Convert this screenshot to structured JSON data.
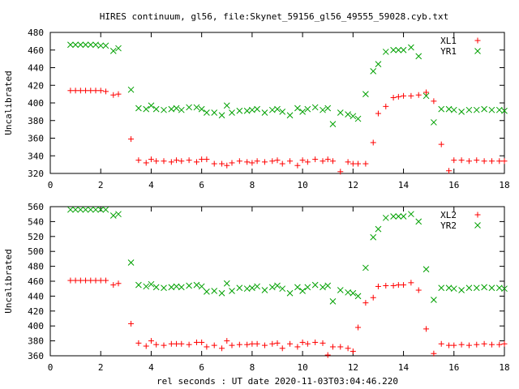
{
  "title": "HIRES continuum, gl56, file:Skynet_59156_gl56_49555_59028.cyb.txt",
  "chart_data": [
    {
      "type": "scatter",
      "xlabel": "",
      "ylabel": "Uncalibrated",
      "xlim": [
        0,
        18
      ],
      "ylim": [
        320,
        480
      ],
      "x_ticks": [
        0,
        2,
        4,
        6,
        8,
        10,
        12,
        14,
        16,
        18
      ],
      "y_ticks": [
        320,
        340,
        360,
        380,
        400,
        420,
        440,
        460,
        480
      ],
      "grid": false,
      "legend_position": "top-right",
      "x": [
        0.8,
        1.0,
        1.2,
        1.4,
        1.6,
        1.8,
        2.0,
        2.2,
        2.5,
        2.7,
        3.2,
        3.5,
        3.8,
        4.0,
        4.2,
        4.5,
        4.8,
        5.0,
        5.2,
        5.5,
        5.8,
        6.0,
        6.2,
        6.5,
        6.8,
        7.0,
        7.2,
        7.5,
        7.8,
        8.0,
        8.2,
        8.5,
        8.8,
        9.0,
        9.2,
        9.5,
        9.8,
        10.0,
        10.2,
        10.5,
        10.8,
        11.0,
        11.2,
        11.5,
        11.8,
        12.0,
        12.2,
        12.5,
        12.8,
        13.0,
        13.3,
        13.6,
        13.8,
        14.0,
        14.3,
        14.6,
        14.9,
        15.2,
        15.5,
        15.8,
        16.0,
        16.3,
        16.6,
        16.9,
        17.2,
        17.5,
        17.8,
        18.0
      ],
      "series": [
        {
          "name": "XL1",
          "color": "#ff0000",
          "marker": "plus",
          "values": [
            414,
            414,
            414,
            414,
            414,
            414,
            414,
            413,
            409,
            410,
            359,
            335,
            332,
            336,
            334,
            334,
            333,
            335,
            334,
            335,
            333,
            336,
            336,
            331,
            331,
            329,
            332,
            334,
            333,
            332,
            334,
            333,
            334,
            335,
            331,
            334,
            329,
            335,
            333,
            336,
            334,
            336,
            334,
            322,
            333,
            331,
            331,
            331,
            355,
            388,
            396,
            406,
            407,
            408,
            408,
            409,
            412,
            402,
            353,
            323,
            335,
            335,
            334,
            335,
            334,
            334,
            334,
            334
          ]
        },
        {
          "name": "YR1",
          "color": "#00a000",
          "marker": "cross",
          "values": [
            466,
            466,
            466,
            466,
            466,
            466,
            465,
            465,
            459,
            462,
            415,
            394,
            393,
            397,
            393,
            392,
            393,
            394,
            392,
            395,
            395,
            393,
            389,
            389,
            386,
            397,
            389,
            391,
            391,
            392,
            393,
            389,
            392,
            393,
            390,
            386,
            394,
            390,
            393,
            395,
            392,
            394,
            376,
            389,
            387,
            385,
            382,
            410,
            436,
            444,
            458,
            460,
            460,
            460,
            463,
            453,
            408,
            378,
            393,
            393,
            392,
            390,
            392,
            392,
            393,
            392,
            392,
            391
          ]
        }
      ]
    },
    {
      "type": "scatter",
      "xlabel": "rel seconds : UT date 2020-11-03T03:04:46.220",
      "ylabel": "Uncalibrated",
      "xlim": [
        0,
        18
      ],
      "ylim": [
        360,
        560
      ],
      "x_ticks": [
        0,
        2,
        4,
        6,
        8,
        10,
        12,
        14,
        16,
        18
      ],
      "y_ticks": [
        360,
        380,
        400,
        420,
        440,
        460,
        480,
        500,
        520,
        540,
        560
      ],
      "grid": false,
      "legend_position": "top-right",
      "x": [
        0.8,
        1.0,
        1.2,
        1.4,
        1.6,
        1.8,
        2.0,
        2.2,
        2.5,
        2.7,
        3.2,
        3.5,
        3.8,
        4.0,
        4.2,
        4.5,
        4.8,
        5.0,
        5.2,
        5.5,
        5.8,
        6.0,
        6.2,
        6.5,
        6.8,
        7.0,
        7.2,
        7.5,
        7.8,
        8.0,
        8.2,
        8.5,
        8.8,
        9.0,
        9.2,
        9.5,
        9.8,
        10.0,
        10.2,
        10.5,
        10.8,
        11.0,
        11.2,
        11.5,
        11.8,
        12.0,
        12.2,
        12.5,
        12.8,
        13.0,
        13.3,
        13.6,
        13.8,
        14.0,
        14.3,
        14.6,
        14.9,
        15.2,
        15.5,
        15.8,
        16.0,
        16.3,
        16.6,
        16.9,
        17.2,
        17.5,
        17.8,
        18.0
      ],
      "series": [
        {
          "name": "XL2",
          "color": "#ff0000",
          "marker": "plus",
          "values": [
            461,
            461,
            461,
            461,
            461,
            461,
            461,
            461,
            455,
            457,
            403,
            377,
            373,
            380,
            375,
            374,
            376,
            376,
            376,
            375,
            378,
            378,
            372,
            374,
            370,
            380,
            374,
            375,
            375,
            376,
            376,
            374,
            376,
            377,
            370,
            376,
            372,
            378,
            376,
            378,
            377,
            361,
            372,
            372,
            370,
            366,
            398,
            431,
            438,
            453,
            454,
            454,
            455,
            455,
            458,
            448,
            396,
            363,
            376,
            374,
            374,
            375,
            374,
            375,
            376,
            375,
            375,
            376
          ]
        },
        {
          "name": "YR2",
          "color": "#00a000",
          "marker": "cross",
          "values": [
            556,
            556,
            556,
            556,
            556,
            556,
            556,
            556,
            548,
            550,
            485,
            455,
            453,
            456,
            452,
            451,
            452,
            453,
            452,
            454,
            455,
            453,
            446,
            447,
            444,
            457,
            447,
            451,
            450,
            451,
            453,
            448,
            452,
            454,
            450,
            444,
            452,
            447,
            452,
            455,
            452,
            454,
            433,
            448,
            445,
            444,
            440,
            478,
            519,
            530,
            545,
            547,
            547,
            547,
            550,
            540,
            476,
            435,
            451,
            451,
            450,
            448,
            451,
            451,
            452,
            451,
            451,
            450
          ]
        }
      ]
    }
  ]
}
